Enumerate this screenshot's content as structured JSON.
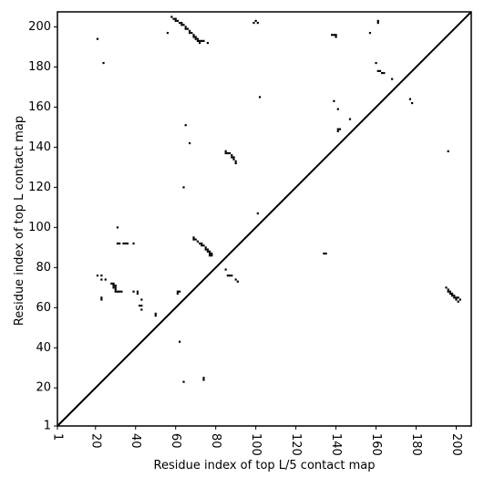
{
  "chart_data": {
    "type": "scatter",
    "x_label": "Residue index of top L/5 contact map",
    "y_label": "Residue index of top L contact map",
    "color": "#000000",
    "xlim": [
      1,
      207.5
    ],
    "ylim": [
      1,
      207.5
    ],
    "xticks": [
      1,
      20,
      40,
      60,
      80,
      100,
      120,
      140,
      160,
      180,
      200
    ],
    "yticks": [
      1,
      20,
      40,
      60,
      80,
      100,
      120,
      140,
      160,
      180,
      200
    ],
    "x": [
      58,
      59,
      60,
      60,
      61,
      62,
      63,
      63,
      64,
      65,
      65,
      66,
      67,
      67,
      68,
      69,
      69,
      70,
      70,
      71,
      71,
      72,
      72,
      73,
      74,
      76,
      56,
      21,
      24,
      100,
      101,
      99,
      139,
      140,
      140,
      138,
      157,
      161,
      161,
      160,
      161,
      162,
      163,
      164,
      168,
      102,
      139,
      141,
      177,
      178,
      147,
      141,
      142,
      141,
      65,
      67,
      85,
      85,
      86,
      87,
      88,
      88,
      89,
      89,
      90,
      90,
      196,
      64,
      101,
      31,
      31,
      32,
      34,
      35,
      36,
      39,
      69,
      69,
      70,
      71,
      72,
      73,
      73,
      74,
      75,
      75,
      76,
      76,
      77,
      77,
      78,
      78,
      77,
      134,
      135,
      85,
      86,
      87,
      88,
      90,
      91,
      21,
      23,
      23,
      25,
      28,
      29,
      29,
      30,
      29,
      30,
      30,
      31,
      32,
      33,
      30,
      39,
      41,
      41,
      61,
      62,
      61,
      23,
      23,
      43,
      42,
      43,
      43,
      50,
      50,
      195,
      196,
      196,
      197,
      197,
      198,
      198,
      199,
      199,
      200,
      200,
      201,
      202,
      201,
      62,
      64,
      74,
      74
    ],
    "y": [
      205,
      204,
      204,
      203,
      203,
      202,
      202,
      201,
      201,
      200,
      199,
      199,
      198,
      197,
      197,
      196,
      195,
      195,
      194,
      194,
      193,
      193,
      192,
      193,
      193,
      192,
      197,
      194,
      182,
      203,
      202,
      202,
      196,
      195,
      196,
      196,
      197,
      203,
      202,
      182,
      178,
      178,
      177,
      177,
      174,
      165,
      163,
      159,
      164,
      162,
      154,
      149,
      149,
      148,
      151,
      142,
      138,
      137,
      137,
      137,
      136,
      135,
      135,
      134,
      133,
      132,
      138,
      120,
      107,
      100,
      92,
      92,
      92,
      92,
      92,
      92,
      95,
      94,
      94,
      93,
      92,
      92,
      91,
      91,
      90,
      89,
      89,
      88,
      88,
      87,
      87,
      86,
      86,
      87,
      87,
      79,
      76,
      76,
      76,
      74,
      73,
      76,
      76,
      74,
      74,
      72,
      72,
      71,
      71,
      70,
      70,
      69,
      68,
      68,
      68,
      68,
      68,
      68,
      67,
      68,
      68,
      67,
      65,
      64,
      64,
      61,
      61,
      59,
      57,
      56,
      70,
      69,
      68,
      68,
      67,
      67,
      66,
      66,
      65,
      65,
      64,
      65,
      64,
      63,
      43,
      23,
      25,
      24
    ]
  }
}
